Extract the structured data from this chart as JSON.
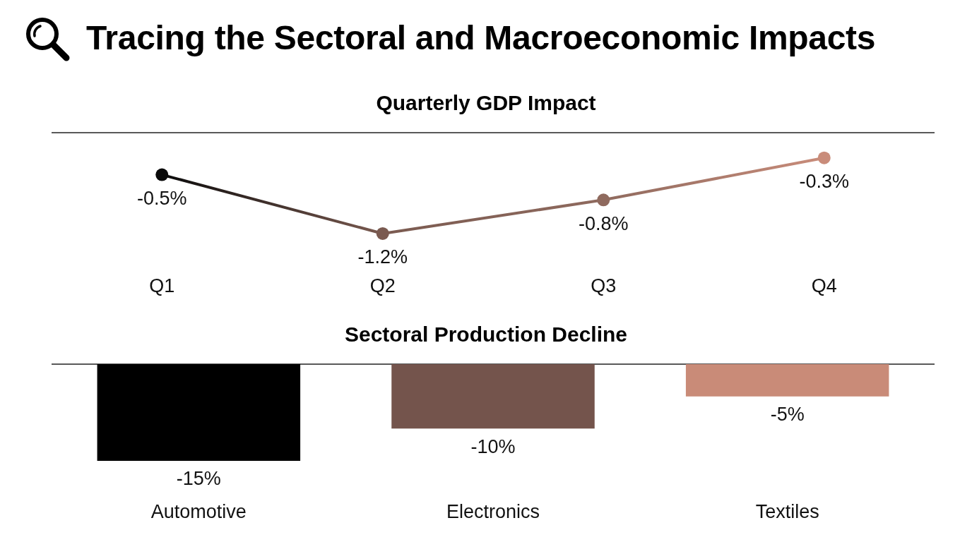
{
  "chart_data": [
    {
      "type": "line",
      "title": "Tracing the Sectoral and Macroeconomic Impacts",
      "subtitle": "Quarterly GDP Impact",
      "categories": [
        "Q1",
        "Q2",
        "Q3",
        "Q4"
      ],
      "values": [
        -0.5,
        -1.2,
        -0.8,
        -0.3
      ],
      "colors": [
        "#0a0a0a",
        "#7a5a50",
        "#8f6a5e",
        "#c98c7a"
      ],
      "value_labels": [
        "-0.5%",
        "-1.2%",
        "-0.8%",
        "-0.3%"
      ],
      "marker": "circle",
      "line_style": "solid",
      "grid": false,
      "legend": false,
      "tick_labels": "x"
    },
    {
      "type": "bar",
      "title": "Sectoral Production Decline",
      "categories": [
        "Automotive",
        "Electronics",
        "Textiles"
      ],
      "values": [
        -15,
        -10,
        -5
      ],
      "colors": [
        "#000000",
        "#74544c",
        "#c98b78"
      ],
      "value_labels": [
        "-15%",
        "-10%",
        "-5%"
      ],
      "grid": false,
      "legend": false,
      "tick_labels": "x"
    }
  ]
}
